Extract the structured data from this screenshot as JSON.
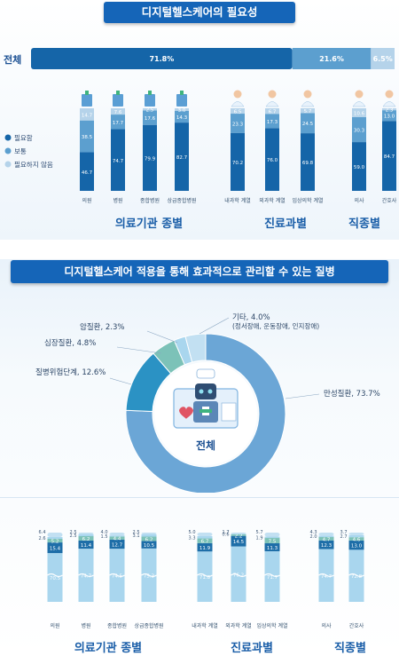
{
  "section1": {
    "title": "디지털헬스케어의 필요성",
    "overall_label": "전체",
    "group_labels": [
      "의료기관 종별",
      "진료과별",
      "직종별"
    ]
  },
  "section2": {
    "title": "디지털헬스케어 적용을 통해 효과적으로 관리할 수 있는 질병",
    "center_label": "전체",
    "group_labels": [
      "의료기관 종별",
      "진료과별",
      "직종별"
    ]
  },
  "colors": {
    "need": "#1565a8",
    "normal": "#5c9fcf",
    "noneed": "#b5d3ea",
    "cat1": "#1e6ea8",
    "cat2": "#2b92c4",
    "cat3": "#7cc2b8",
    "cat4": "#a9d6ee",
    "cat5": "#c2e0f2",
    "chronic": "#6ba6d6"
  },
  "chart_data": [
    {
      "type": "bar",
      "orientation": "horizontal-stacked",
      "categories": [
        "전체"
      ],
      "series": [
        {
          "name": "필요함",
          "values": [
            71.8
          ]
        },
        {
          "name": "보통",
          "values": [
            21.6
          ]
        },
        {
          "name": "필요하지 않음",
          "values": [
            6.5
          ]
        }
      ],
      "value_labels": [
        "71.8%",
        "21.6%",
        "6.5%"
      ]
    },
    {
      "type": "bar",
      "orientation": "vertical-stacked",
      "categories": [
        "의원",
        "병원",
        "종합병원",
        "상급종합병원",
        "내과학 계열",
        "외과학 계열",
        "임상의학 계열",
        "의사",
        "간호사"
      ],
      "groups": [
        {
          "name": "의료기관 종별",
          "categories": [
            "의원",
            "병원",
            "종합병원",
            "상급종합병원"
          ]
        },
        {
          "name": "진료과별",
          "categories": [
            "내과학 계열",
            "외과학 계열",
            "임상의학 계열"
          ]
        },
        {
          "name": "직종별",
          "categories": [
            "의사",
            "간호사"
          ]
        }
      ],
      "series": [
        {
          "name": "필요함",
          "values": [
            46.7,
            74.7,
            79.9,
            82.7,
            70.2,
            76.0,
            69.8,
            59.0,
            84.7
          ]
        },
        {
          "name": "보통",
          "values": [
            38.5,
            17.7,
            17.6,
            14.3,
            23.3,
            17.3,
            24.5,
            30.3,
            13.0
          ]
        },
        {
          "name": "필요하지 않음",
          "values": [
            14.7,
            7.6,
            2.5,
            3.0,
            6.5,
            6.7,
            5.7,
            10.6,
            2.3
          ]
        }
      ],
      "legend": [
        "필요함",
        "보통",
        "필요하지 않음"
      ],
      "legend_position": "left"
    },
    {
      "type": "pie",
      "style": "donut",
      "labels": [
        "만성질환",
        "질병위험단계",
        "심장질환",
        "암질환",
        "기타"
      ],
      "values": [
        73.7,
        12.6,
        4.8,
        2.3,
        4.0
      ],
      "value_labels": [
        "만성질환, 73.7%",
        "질병위험단계, 12.6%",
        "심장질환, 4.8%",
        "암질환, 2.3%",
        "기타, 4.0%"
      ],
      "annotation": "(정서장애, 운동장애, 인지장애)"
    },
    {
      "type": "bar",
      "orientation": "vertical-stacked",
      "categories": [
        "의원",
        "병원",
        "종합병원",
        "상급종합병원",
        "내과학 계열",
        "외과학 계열",
        "임상의학 계열",
        "의사",
        "간호사"
      ],
      "groups": [
        {
          "name": "의료기관 종별",
          "categories": [
            "의원",
            "병원",
            "종합병원",
            "상급종합병원"
          ]
        },
        {
          "name": "진료과별",
          "categories": [
            "내과학 계열",
            "외과학 계열",
            "임상의학 계열"
          ]
        },
        {
          "name": "직종별",
          "categories": [
            "의사",
            "간호사"
          ]
        }
      ],
      "series": [
        {
          "name": "만성질환",
          "values": [
            70.5,
            74.7,
            74.5,
            75.3,
            71.8,
            76.2,
            71.7,
            74.7,
            72.8
          ]
        },
        {
          "name": "질병위험단계",
          "values": [
            15.4,
            11.4,
            12.7,
            10.5,
            11.9,
            14.5,
            11.3,
            12.3,
            13.0
          ]
        },
        {
          "name": "심장질환",
          "values": [
            5.2,
            6.2,
            4.4,
            6.2,
            6.7,
            2.2,
            7.5,
            4.7,
            4.6
          ]
        },
        {
          "name": "암질환",
          "values": [
            2.6,
            2.5,
            1.5,
            3.1,
            3.3,
            0.6,
            1.9,
            2.0,
            2.7
          ]
        },
        {
          "name": "기타",
          "values": [
            6.4,
            2.5,
            4.0,
            2.5,
            5.0,
            1.7,
            5.7,
            4.3,
            3.7
          ]
        }
      ]
    }
  ]
}
